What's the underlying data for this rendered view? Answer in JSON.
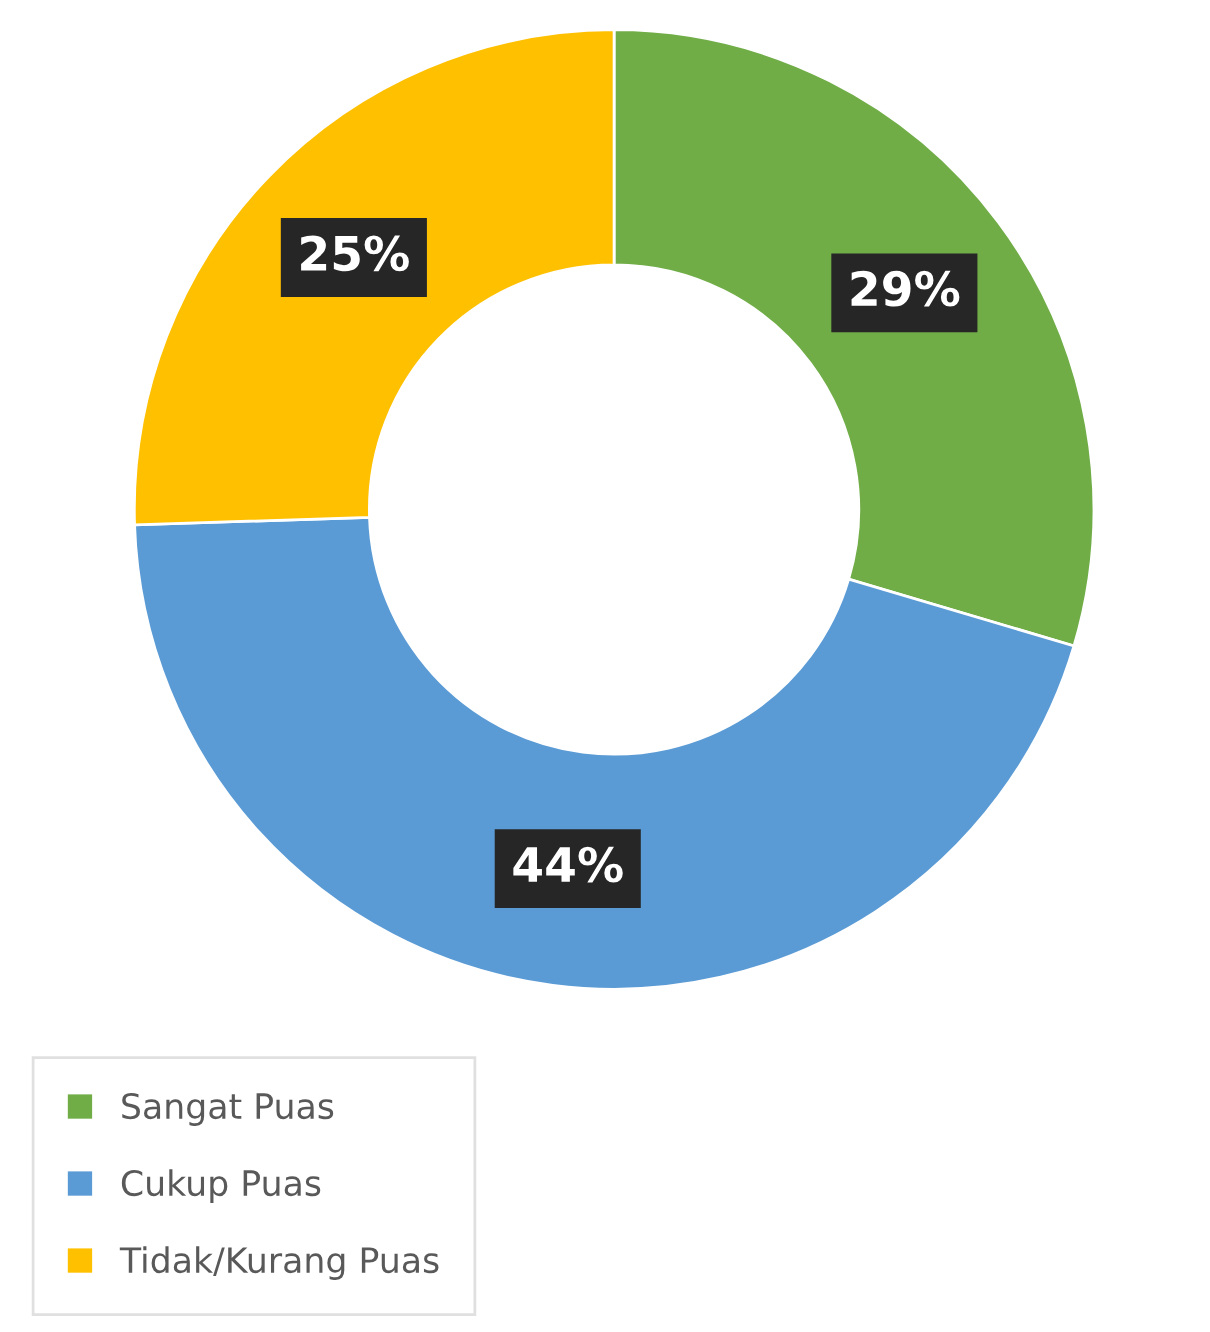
{
  "chart_data": {
    "type": "donut",
    "categories": [
      "Sangat Puas",
      "Cukup Puas",
      "Tidak/Kurang Puas"
    ],
    "values": [
      29,
      44,
      25
    ],
    "colors": [
      "#70ad47",
      "#5b9bd5",
      "#ffc000"
    ],
    "value_labels": [
      "29%",
      "44%",
      "25%"
    ],
    "legend": "bottom left"
  }
}
